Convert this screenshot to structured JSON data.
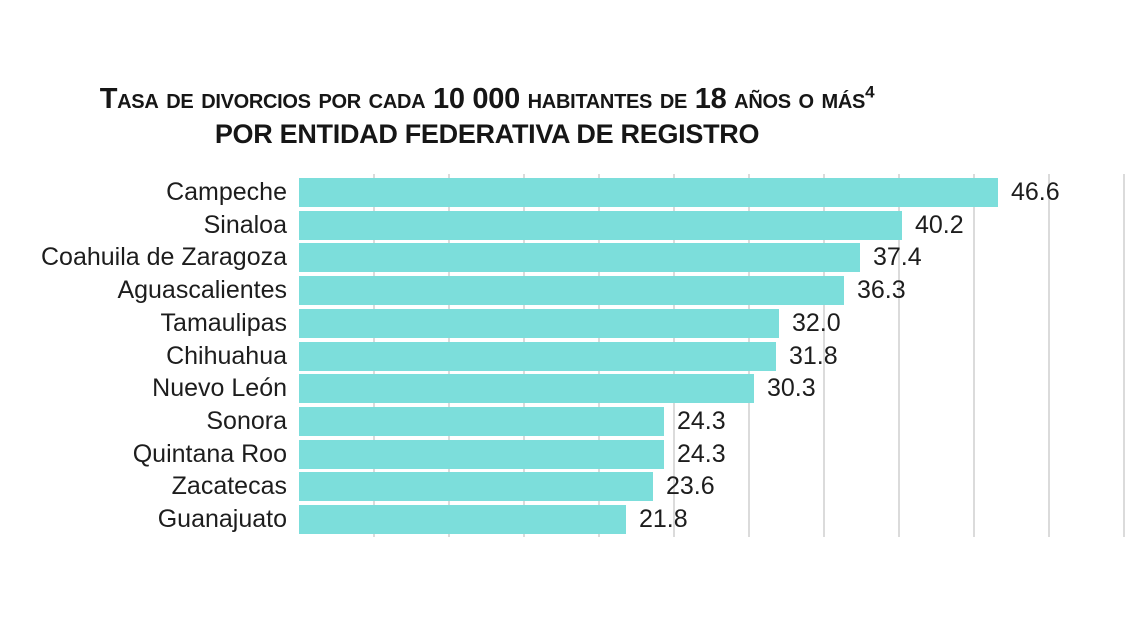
{
  "chart_data": {
    "type": "bar",
    "orientation": "horizontal",
    "title": "Tasa de divorcios por cada 10 000 habitantes de 18 años o más",
    "title_superscript": "4",
    "subtitle": "POR ENTIDAD FEDERATIVA DE REGISTRO",
    "categories": [
      "Campeche",
      "Sinaloa",
      "Coahuila de Zaragoza",
      "Aguascalientes",
      "Tamaulipas",
      "Chihuahua",
      "Nuevo León",
      "Sonora",
      "Quintana Roo",
      "Zacatecas",
      "Guanajuato"
    ],
    "values": [
      46.6,
      40.2,
      37.4,
      36.3,
      32.0,
      31.8,
      30.3,
      24.3,
      24.3,
      23.6,
      21.8
    ],
    "value_labels": [
      "46.6",
      "40.2",
      "37.4",
      "36.3",
      "32.0",
      "31.8",
      "30.3",
      "24.3",
      "24.3",
      "23.6",
      "21.8"
    ],
    "xlim": [
      0,
      55
    ],
    "gridline_step": 5,
    "grid": true,
    "legend": "none",
    "bar_color": "#7cdedb",
    "gridline_color": "#dbdbdb",
    "text_color": "#1d1d1d"
  }
}
